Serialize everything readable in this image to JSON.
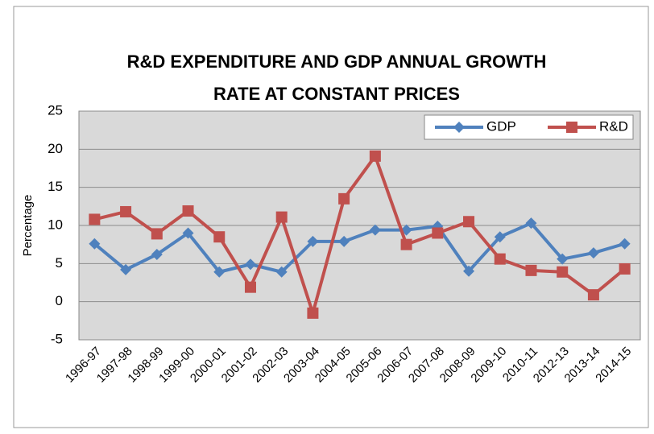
{
  "chart_data": {
    "type": "line",
    "title": [
      "R&D EXPENDITURE AND GDP ANNUAL GROWTH",
      "RATE AT CONSTANT PRICES"
    ],
    "y_label": "Percentage",
    "categories": [
      "1996-97",
      "1997-98",
      "1998-99",
      "1999-00",
      "2000-01",
      "2001-02",
      "2002-03",
      "2003-04",
      "2004-05",
      "2005-06",
      "2006-07",
      "2007-08",
      "2008-09",
      "2009-10",
      "2010-11",
      "2012-13",
      "2013-14",
      "2014-15"
    ],
    "series": [
      {
        "name": "GDP",
        "color": "#4f81bd",
        "marker": "diamond",
        "values": [
          7.6,
          4.2,
          6.2,
          9.0,
          3.9,
          4.9,
          3.9,
          7.9,
          7.9,
          9.4,
          9.4,
          9.9,
          4.0,
          8.5,
          10.3,
          5.6,
          6.4,
          7.6
        ]
      },
      {
        "name": "R&D",
        "color": "#c0504d",
        "marker": "square",
        "values": [
          10.8,
          11.8,
          8.9,
          11.9,
          8.5,
          1.9,
          11.1,
          -1.5,
          13.5,
          19.1,
          7.5,
          9.0,
          10.5,
          5.6,
          4.1,
          3.9,
          0.9,
          4.3
        ]
      }
    ],
    "ylim": [
      -5,
      25
    ],
    "yticks": [
      -5,
      0,
      5,
      10,
      15,
      20,
      25
    ],
    "grid": true,
    "legend": "top-right"
  }
}
